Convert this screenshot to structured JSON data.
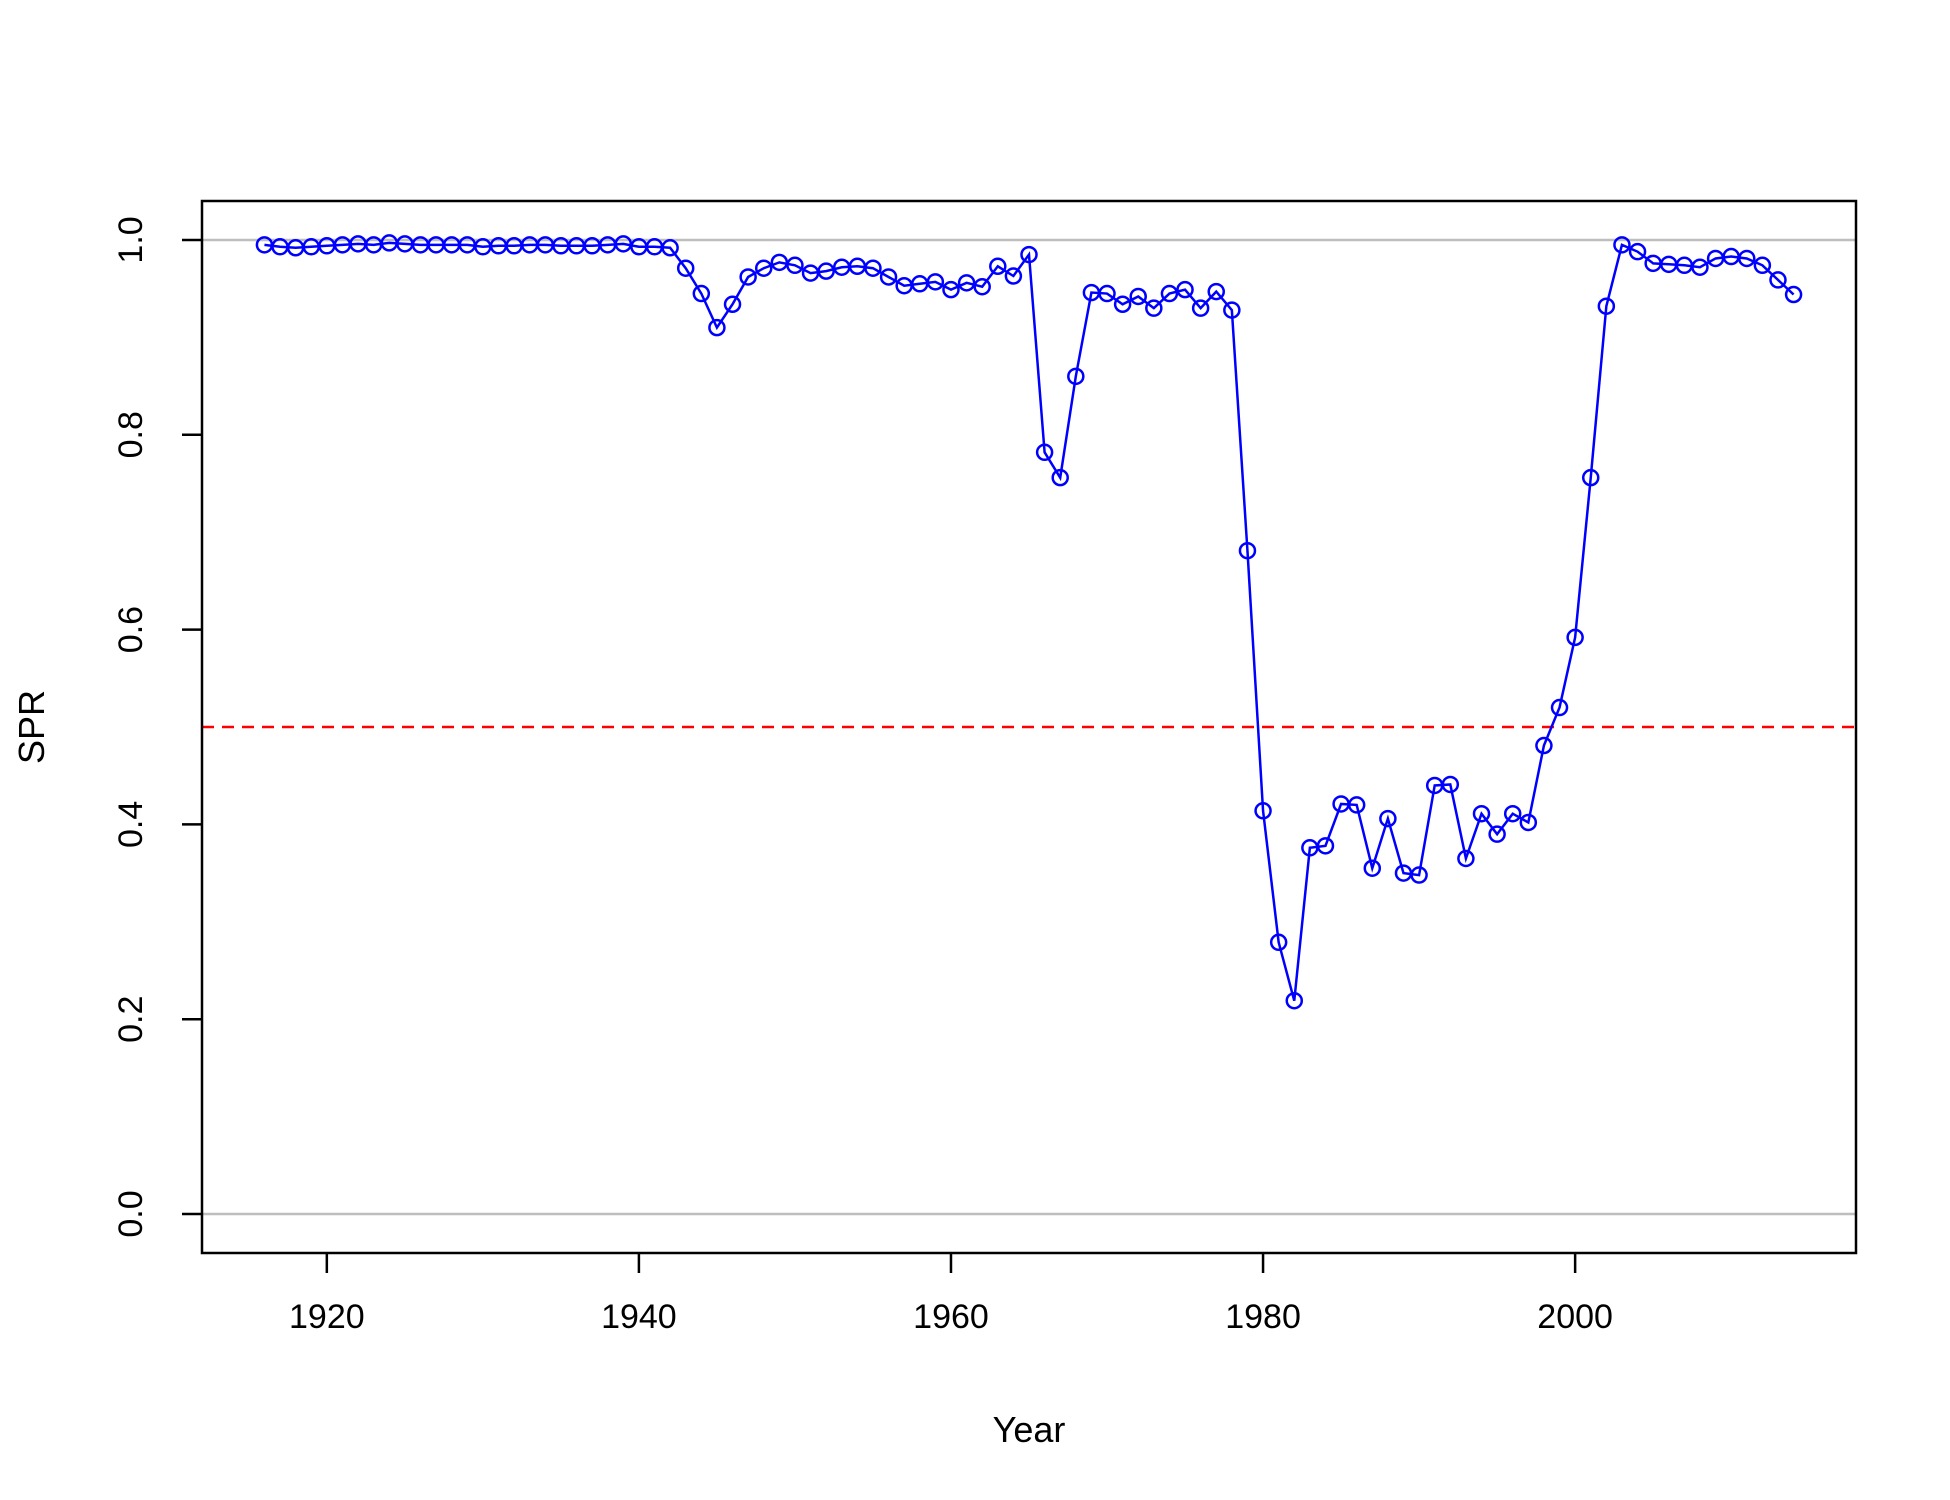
{
  "chart_data": {
    "type": "line",
    "title": "",
    "xlabel": "Year",
    "ylabel": "SPR",
    "xlim": [
      1912,
      2018
    ],
    "ylim": [
      -0.04,
      1.04
    ],
    "x_ticks": [
      "1920",
      "1940",
      "1960",
      "1980",
      "2000"
    ],
    "y_ticks": [
      "0.0",
      "0.2",
      "0.4",
      "0.6",
      "0.8",
      "1.0"
    ],
    "grid": false,
    "reference_lines": [
      {
        "y": 1.0,
        "color": "#bebebe",
        "style": "solid"
      },
      {
        "y": 0.0,
        "color": "#bebebe",
        "style": "solid"
      },
      {
        "y": 0.5,
        "color": "#ff0000",
        "style": "dashed"
      }
    ],
    "series": [
      {
        "color": "#0000ff",
        "marker": "open-circle",
        "x": [
          1916,
          1917,
          1918,
          1919,
          1920,
          1921,
          1922,
          1923,
          1924,
          1925,
          1926,
          1927,
          1928,
          1929,
          1930,
          1931,
          1932,
          1933,
          1934,
          1935,
          1936,
          1937,
          1938,
          1939,
          1940,
          1941,
          1942,
          1943,
          1944,
          1945,
          1946,
          1947,
          1948,
          1949,
          1950,
          1951,
          1952,
          1953,
          1954,
          1955,
          1956,
          1957,
          1958,
          1959,
          1960,
          1961,
          1962,
          1963,
          1964,
          1965,
          1966,
          1967,
          1968,
          1969,
          1970,
          1971,
          1972,
          1973,
          1974,
          1975,
          1976,
          1977,
          1978,
          1979,
          1980,
          1981,
          1982,
          1983,
          1984,
          1985,
          1986,
          1987,
          1988,
          1989,
          1990,
          1991,
          1992,
          1993,
          1994,
          1995,
          1996,
          1997,
          1998,
          1999,
          2000,
          2001,
          2002,
          2003,
          2004,
          2005,
          2006,
          2007,
          2008,
          2009,
          2010,
          2011,
          2012,
          2013,
          2014
        ],
        "y": [
          0.995,
          0.993,
          0.992,
          0.993,
          0.994,
          0.995,
          0.996,
          0.995,
          0.997,
          0.996,
          0.995,
          0.995,
          0.995,
          0.995,
          0.993,
          0.994,
          0.994,
          0.995,
          0.995,
          0.994,
          0.994,
          0.994,
          0.995,
          0.996,
          0.993,
          0.993,
          0.992,
          0.971,
          0.945,
          0.91,
          0.934,
          0.962,
          0.971,
          0.977,
          0.974,
          0.966,
          0.968,
          0.972,
          0.973,
          0.971,
          0.962,
          0.953,
          0.955,
          0.957,
          0.949,
          0.956,
          0.952,
          0.973,
          0.963,
          0.985,
          0.782,
          0.756,
          0.86,
          0.946,
          0.945,
          0.934,
          0.942,
          0.93,
          0.945,
          0.949,
          0.93,
          0.947,
          0.928,
          0.681,
          0.414,
          0.279,
          0.219,
          0.376,
          0.378,
          0.421,
          0.42,
          0.355,
          0.406,
          0.35,
          0.348,
          0.44,
          0.441,
          0.365,
          0.411,
          0.39,
          0.411,
          0.402,
          0.481,
          0.52,
          0.592,
          0.756,
          0.932,
          0.995,
          0.988,
          0.976,
          0.975,
          0.974,
          0.972,
          0.981,
          0.983,
          0.981,
          0.974,
          0.959,
          0.944
        ]
      }
    ]
  }
}
